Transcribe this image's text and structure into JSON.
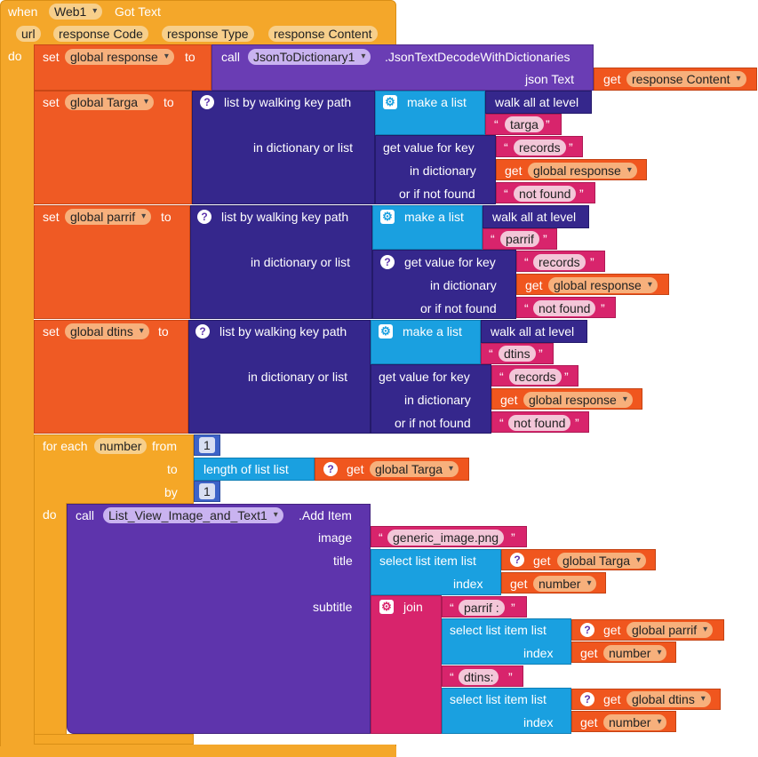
{
  "event": {
    "when": "when",
    "component": "Web1",
    "event_name": "Got Text",
    "params": [
      "url",
      "response Code",
      "response Type",
      "response Content"
    ],
    "do": "do"
  },
  "kw": {
    "set": "set",
    "to": "to",
    "call": "call",
    "get": "get",
    "json_text": "json Text",
    "walk_path": "list by walking key path",
    "in_dict_or_list": "in dictionary or list",
    "make_list": "make a list",
    "walk_all": "walk all at level",
    "get_value": "get value for key",
    "in_dict": "in dictionary",
    "if_not_found": "or if not found",
    "for_each": "for each",
    "from": "from",
    "by": "by",
    "do": "do",
    "length_of_list": "length of list  list",
    "add_item": ".Add Item",
    "image": "image",
    "title": "title",
    "subtitle": "subtitle",
    "select_item": "select list item  list",
    "index": "index",
    "join": "join"
  },
  "set1": {
    "var": "global response",
    "component": "JsonToDictionary1",
    "method": ".JsonTextDecodeWithDictionaries",
    "arg_var": "response Content"
  },
  "set2": {
    "var": "global Targa",
    "key": "targa",
    "records": "records",
    "dict": "global response",
    "not_found": "not found"
  },
  "set3": {
    "var": "global parrif",
    "key": "parrif",
    "records": "records",
    "dict": "global response",
    "not_found": "not found"
  },
  "set4": {
    "var": "global dtins",
    "key": "dtins",
    "records": "records",
    "dict": "global response",
    "not_found": "not found"
  },
  "loop": {
    "var": "number",
    "from": "1",
    "to_list": "global Targa",
    "by": "1",
    "component": "List_View_Image_and_Text1",
    "image": "generic_image.png",
    "title_list": "global Targa",
    "title_index": "number",
    "sub_str1": "parrif :",
    "sub_list1": "global parrif",
    "sub_index1": "number",
    "sub_str2": "dtins:",
    "sub_list2": "global dtins",
    "sub_index2": "number"
  },
  "colors": {
    "event": "#f4a72a",
    "set": "#ef5a24",
    "dict": "#35278c",
    "list": "#1aa0e0",
    "text": "#d8246c",
    "procedure": "#5e34ac",
    "math": "#3d63c8"
  }
}
